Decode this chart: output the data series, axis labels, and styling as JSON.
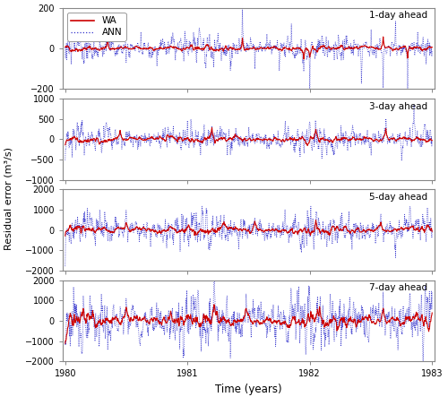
{
  "title": "",
  "xlabel": "Time (years)",
  "ylabel": "Residual error (m³/s)",
  "panels": [
    {
      "label": "1-day ahead",
      "ylim": [
        -200,
        200
      ],
      "yticks": [
        -200,
        0,
        200
      ]
    },
    {
      "label": "3-day ahead",
      "ylim": [
        -1000,
        1000
      ],
      "yticks": [
        -1000,
        -500,
        0,
        500,
        1000
      ]
    },
    {
      "label": "5-day ahead",
      "ylim": [
        -2000,
        2000
      ],
      "yticks": [
        -2000,
        -1000,
        0,
        1000,
        2000
      ]
    },
    {
      "label": "7-day ahead",
      "ylim": [
        -2000,
        2000
      ],
      "yticks": [
        -2000,
        -1000,
        0,
        1000,
        2000
      ]
    }
  ],
  "wa_color": "#cc0000",
  "ann_color": "#3333cc",
  "wa_lw": 0.8,
  "ann_lw": 0.6,
  "background": "#ffffff",
  "t_start": 1980.0,
  "t_end": 1983.0,
  "xticks": [
    1980,
    1981,
    1982,
    1983
  ],
  "n_points": 1096,
  "seed": 42
}
